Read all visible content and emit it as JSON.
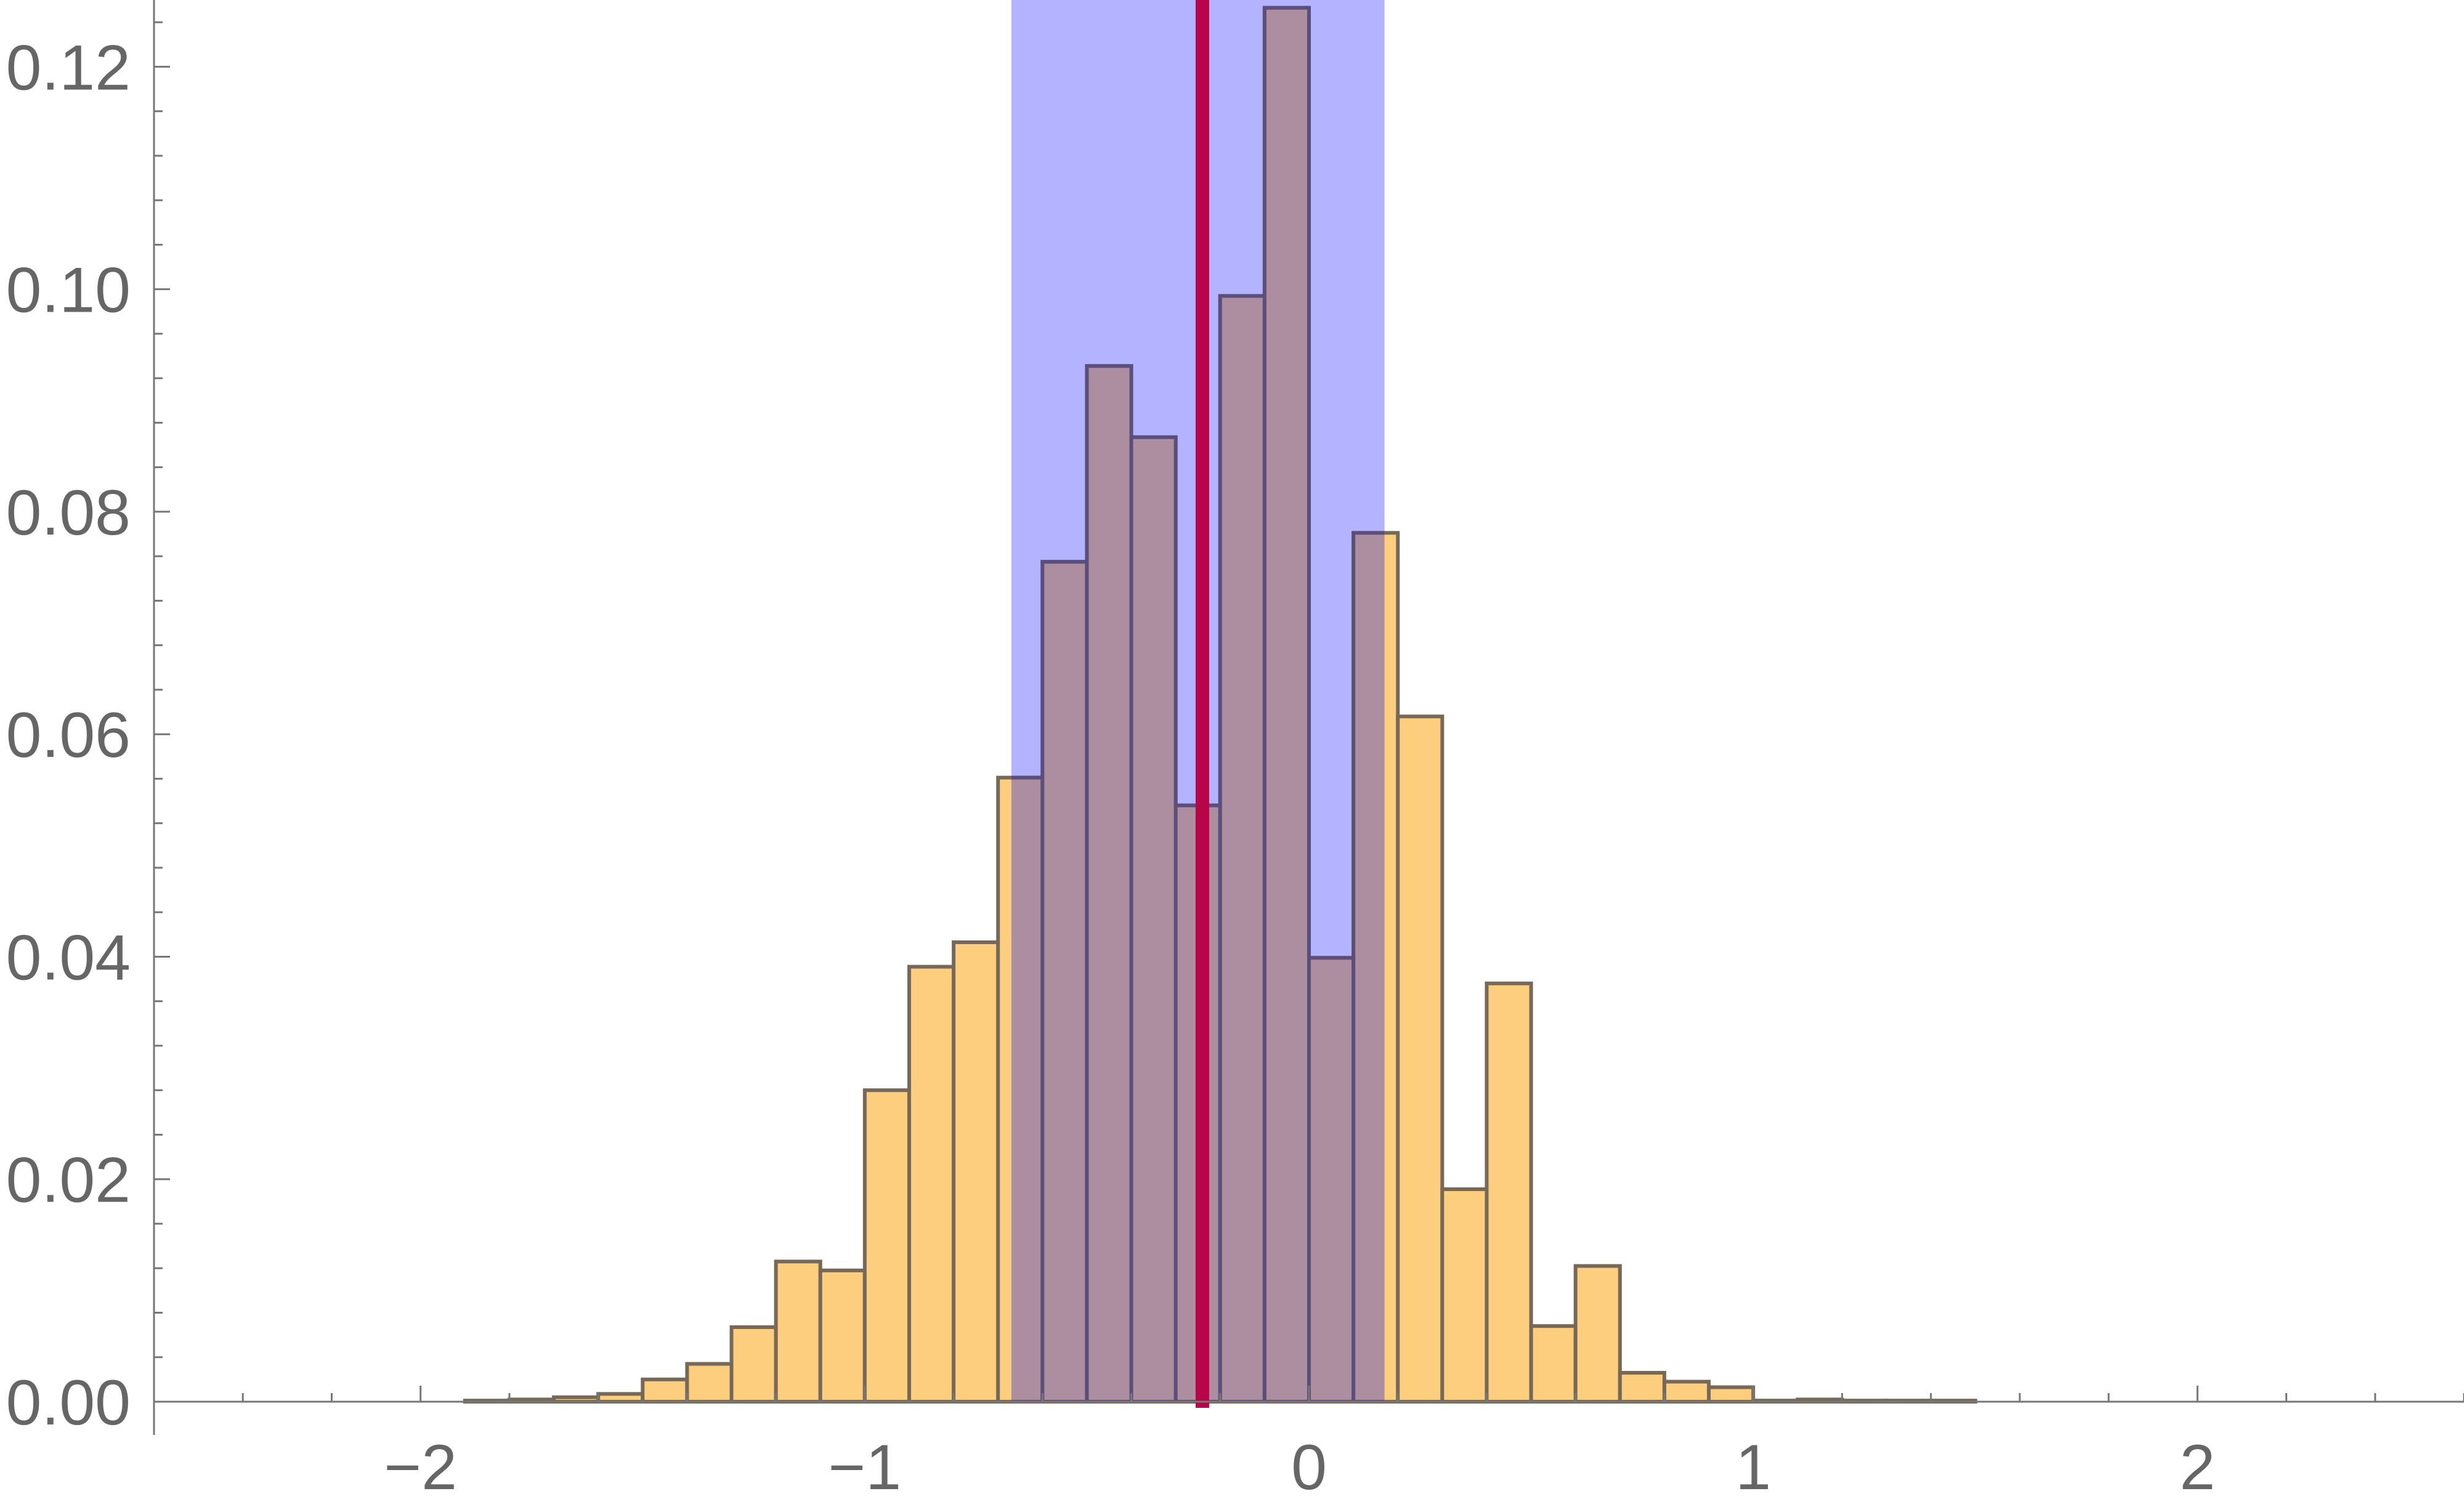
{
  "chart_data": {
    "type": "bar",
    "title": "",
    "xlabel": "",
    "ylabel": "",
    "xlim": [
      -2.6,
      2.6
    ],
    "ylim": [
      0,
      0.126
    ],
    "bin_width": 0.1,
    "bins": [
      {
        "x0": -1.9,
        "x1": -1.8,
        "y": 0.0001
      },
      {
        "x0": -1.8,
        "x1": -1.7,
        "y": 0.0002
      },
      {
        "x0": -1.7,
        "x1": -1.6,
        "y": 0.0004
      },
      {
        "x0": -1.6,
        "x1": -1.5,
        "y": 0.0007
      },
      {
        "x0": -1.5,
        "x1": -1.4,
        "y": 0.002
      },
      {
        "x0": -1.4,
        "x1": -1.3,
        "y": 0.0034
      },
      {
        "x0": -1.3,
        "x1": -1.2,
        "y": 0.0067
      },
      {
        "x0": -1.2,
        "x1": -1.1,
        "y": 0.0126
      },
      {
        "x0": -1.1,
        "x1": -1.0,
        "y": 0.0118
      },
      {
        "x0": -1.0,
        "x1": -0.9,
        "y": 0.028
      },
      {
        "x0": -0.9,
        "x1": -0.8,
        "y": 0.0391
      },
      {
        "x0": -0.8,
        "x1": -0.7,
        "y": 0.0413
      },
      {
        "x0": -0.7,
        "x1": -0.6,
        "y": 0.0561
      },
      {
        "x0": -0.6,
        "x1": -0.5,
        "y": 0.0755
      },
      {
        "x0": -0.5,
        "x1": -0.4,
        "y": 0.0931
      },
      {
        "x0": -0.4,
        "x1": -0.3,
        "y": 0.0867
      },
      {
        "x0": -0.3,
        "x1": -0.2,
        "y": 0.0536
      },
      {
        "x0": -0.2,
        "x1": -0.1,
        "y": 0.0994
      },
      {
        "x0": -0.1,
        "x1": 0.0,
        "y": 0.1253
      },
      {
        "x0": 0.0,
        "x1": 0.1,
        "y": 0.0399
      },
      {
        "x0": 0.1,
        "x1": 0.2,
        "y": 0.0781
      },
      {
        "x0": 0.2,
        "x1": 0.3,
        "y": 0.0616
      },
      {
        "x0": 0.3,
        "x1": 0.4,
        "y": 0.0191
      },
      {
        "x0": 0.4,
        "x1": 0.5,
        "y": 0.0376
      },
      {
        "x0": 0.5,
        "x1": 0.6,
        "y": 0.0068
      },
      {
        "x0": 0.6,
        "x1": 0.7,
        "y": 0.0122
      },
      {
        "x0": 0.7,
        "x1": 0.8,
        "y": 0.0026
      },
      {
        "x0": 0.8,
        "x1": 0.9,
        "y": 0.0018
      },
      {
        "x0": 0.9,
        "x1": 1.0,
        "y": 0.0013
      },
      {
        "x0": 1.0,
        "x1": 1.1,
        "y": 0.0001
      },
      {
        "x0": 1.1,
        "x1": 1.2,
        "y": 0.0002
      },
      {
        "x0": 1.2,
        "x1": 1.3,
        "y": 0.0001
      },
      {
        "x0": 1.3,
        "x1": 1.4,
        "y": 0.0001
      },
      {
        "x0": 1.4,
        "x1": 1.5,
        "y": 0.0001
      }
    ],
    "highlight_band": {
      "x0": -0.67,
      "x1": 0.17
    },
    "vertical_line_x": -0.24,
    "x_ticks": [
      {
        "value": -2,
        "label": "−2"
      },
      {
        "value": -1,
        "label": "−1"
      },
      {
        "value": 0,
        "label": "0"
      },
      {
        "value": 1,
        "label": "1"
      },
      {
        "value": 2,
        "label": "2"
      }
    ],
    "y_ticks": [
      {
        "value": 0,
        "label": "0.00"
      },
      {
        "value": 0.02,
        "label": "0.02"
      },
      {
        "value": 0.04,
        "label": "0.04"
      },
      {
        "value": 0.06,
        "label": "0.06"
      },
      {
        "value": 0.08,
        "label": "0.08"
      },
      {
        "value": 0.1,
        "label": "0.10"
      },
      {
        "value": 0.12,
        "label": "0.12"
      }
    ],
    "grid": false,
    "colors": {
      "bar_fill": "#FDCE7E",
      "bar_stroke": "#77695A",
      "band_fill": "#B3B3FF",
      "overlap_fill": "#AD8EA1",
      "overlap_stroke": "#5C4E7B",
      "vertical_line": "#B8054A",
      "axis": "#777777",
      "tick_label": "#666666"
    }
  }
}
